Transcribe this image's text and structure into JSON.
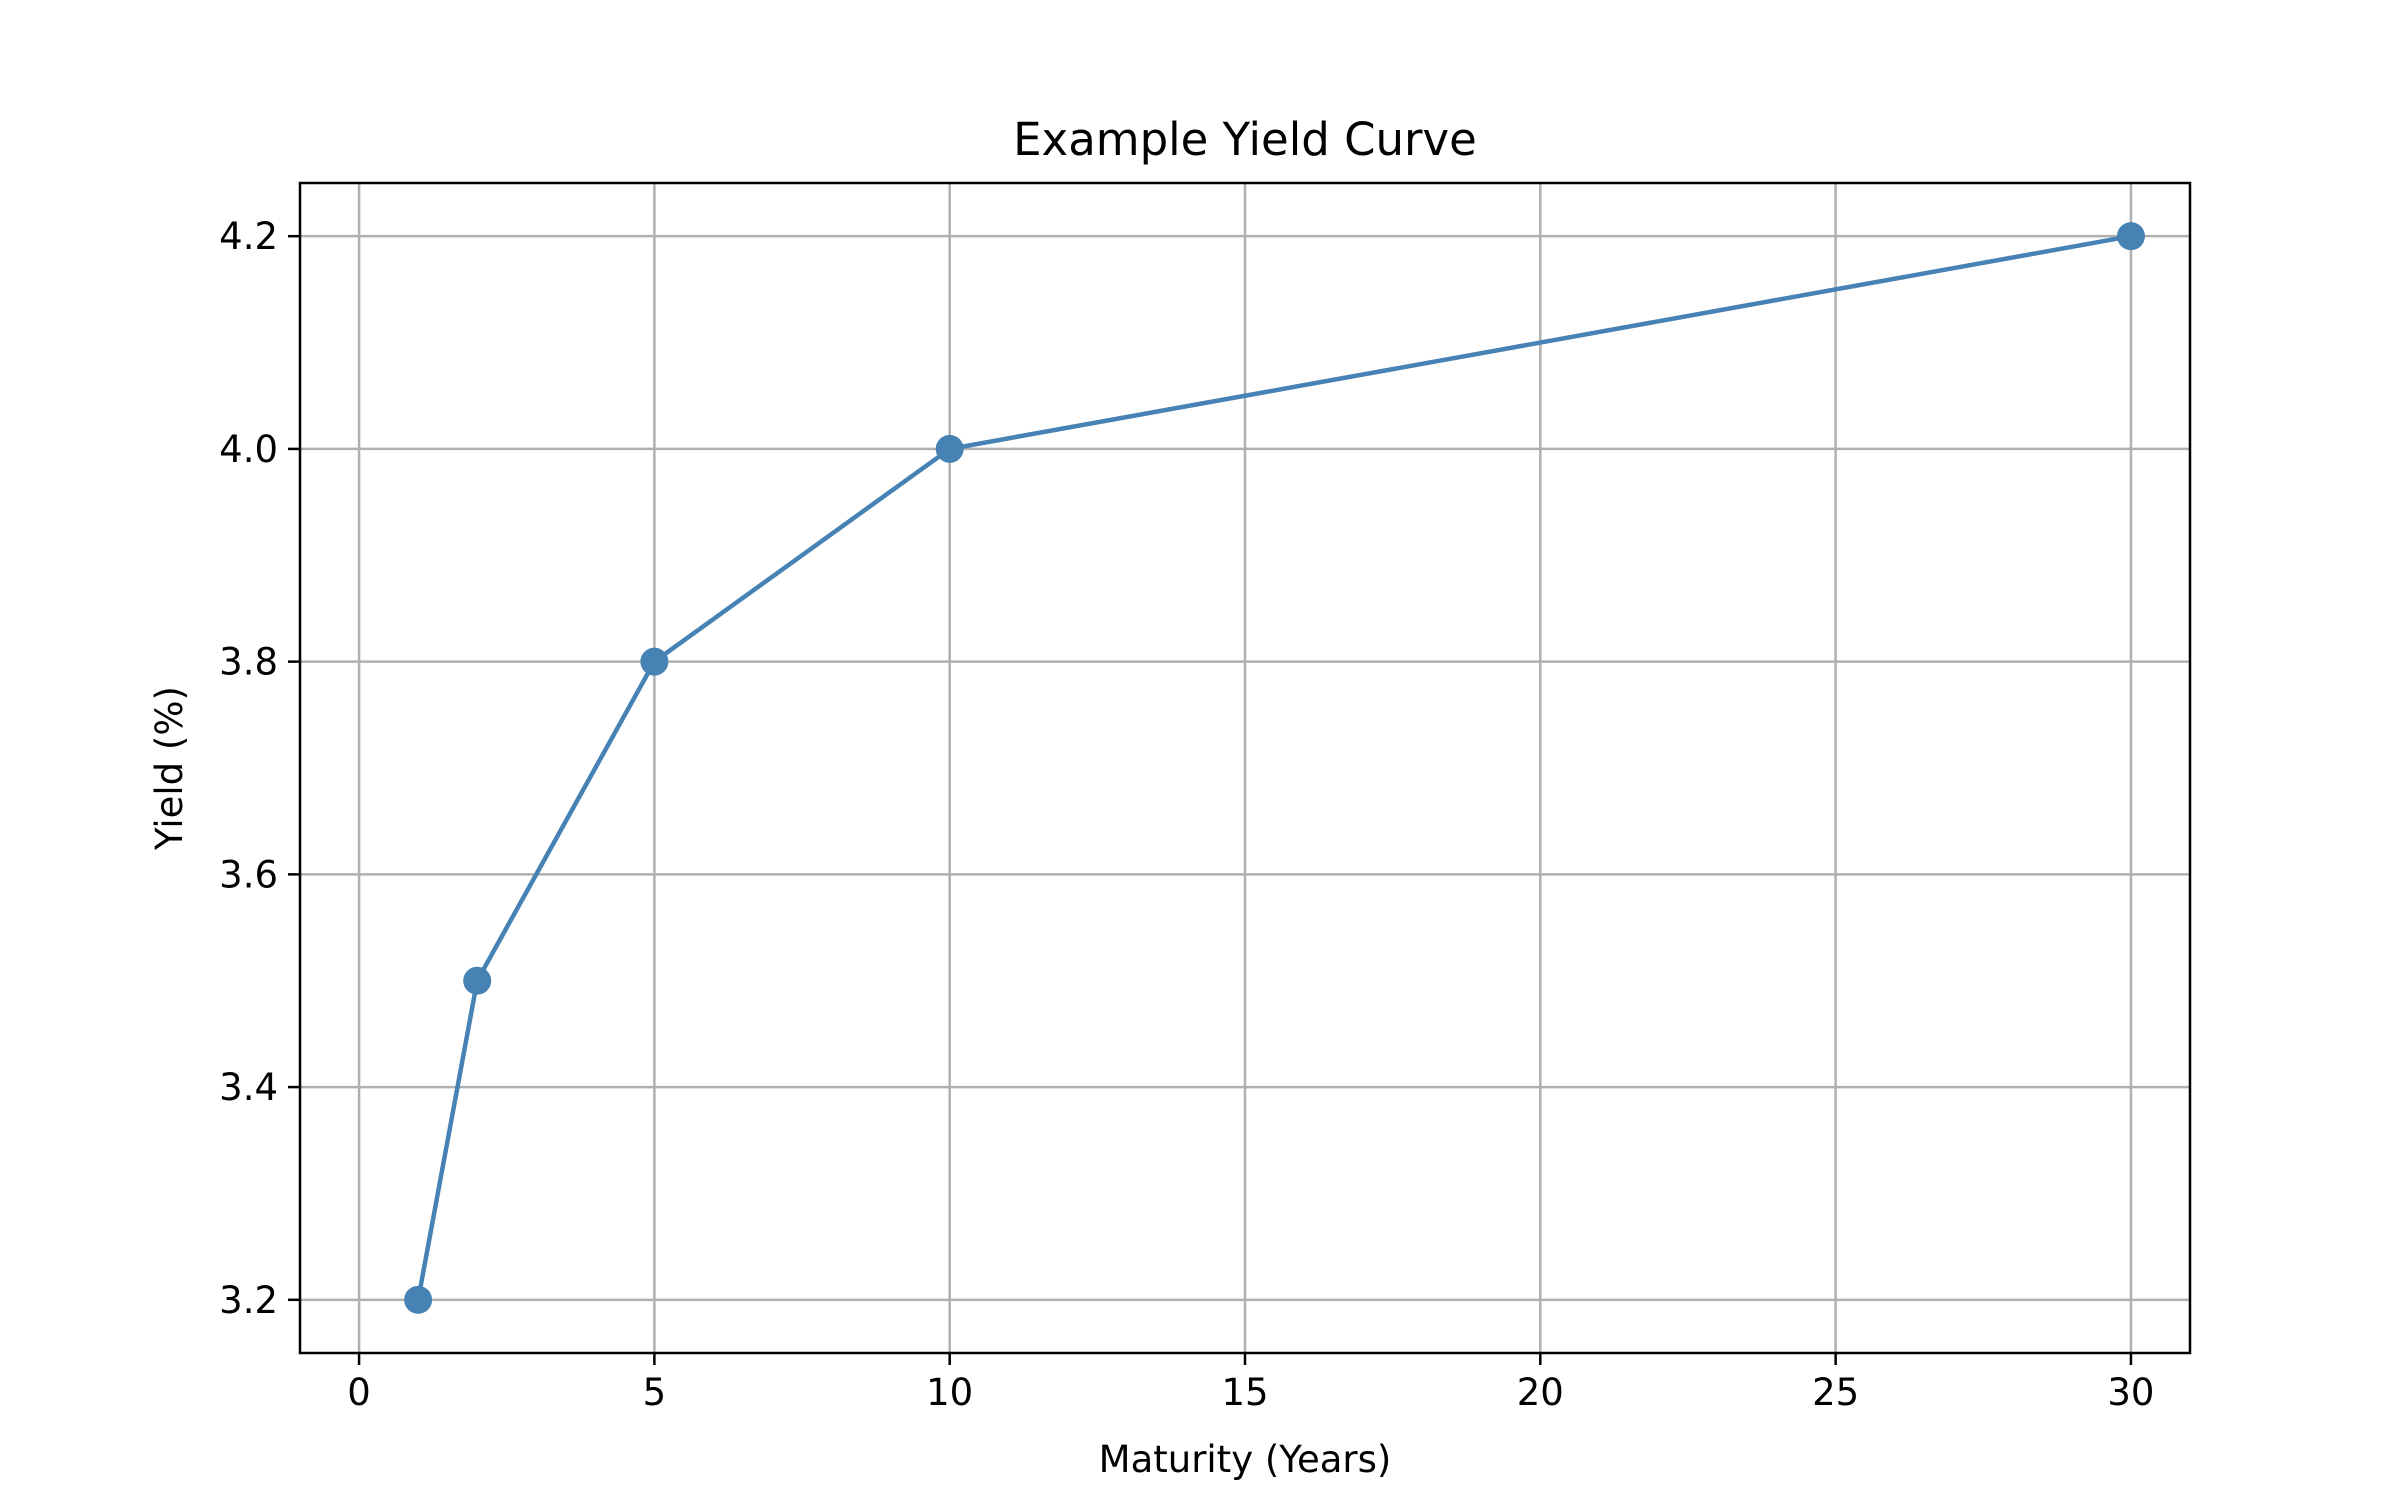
{
  "chart_data": {
    "type": "line",
    "title": "Example Yield Curve",
    "xlabel": "Maturity (Years)",
    "ylabel": "Yield (%)",
    "xlim": [
      -1.0,
      31.0
    ],
    "ylim": [
      3.15,
      4.25
    ],
    "x": [
      1,
      2,
      5,
      10,
      30
    ],
    "series": [
      {
        "values": [
          3.2,
          3.5,
          3.8,
          4.0,
          4.2
        ]
      }
    ],
    "xticks": [
      0,
      5,
      10,
      15,
      20,
      25,
      30
    ],
    "xtick_labels": [
      "0",
      "5",
      "10",
      "15",
      "20",
      "25",
      "30"
    ],
    "yticks": [
      3.2,
      3.4,
      3.6,
      3.8,
      4.0,
      4.2
    ],
    "ytick_labels": [
      "3.2",
      "3.4",
      "3.6",
      "3.8",
      "4.0",
      "4.2"
    ],
    "grid": true,
    "marker": "circle",
    "colors": {
      "line": "#4682b4",
      "grid": "#b0b0b0",
      "axes": "#000000"
    }
  }
}
